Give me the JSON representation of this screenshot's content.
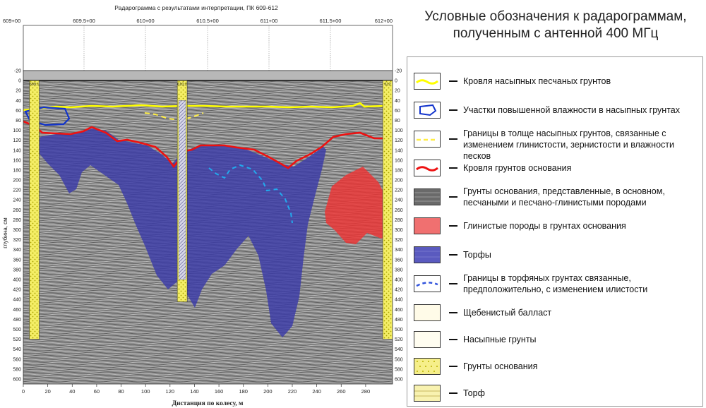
{
  "radargram": {
    "title": "Радарограмма с результатами интерпретации, ПК 609-612",
    "pk_labels": [
      "609+00",
      "609.5+00",
      "610+00",
      "610.5+00",
      "611+00",
      "611.5+00",
      "612+00"
    ],
    "x_axis": {
      "label": "Дистанция по колесу, м",
      "ticks": [
        0,
        20,
        40,
        60,
        80,
        100,
        120,
        140,
        160,
        180,
        200,
        220,
        240,
        260,
        280
      ],
      "range": [
        0,
        302
      ]
    },
    "y_axis": {
      "label": "глубина, см",
      "ticks": [
        -20,
        0,
        20,
        40,
        60,
        80,
        100,
        120,
        140,
        160,
        180,
        200,
        220,
        240,
        260,
        280,
        300,
        320,
        340,
        360,
        380,
        400,
        420,
        440,
        460,
        480,
        500,
        520,
        540,
        560,
        580,
        600
      ],
      "range": [
        -20,
        610
      ]
    },
    "boreholes": [
      {
        "label": "609.1",
        "x": 9,
        "depth": 520
      },
      {
        "label": "610.2",
        "x": 130,
        "depth": 445
      },
      {
        "label": "612",
        "x": 298,
        "depth": 520
      }
    ],
    "colors": {
      "yellow_line": "#ffff00",
      "red_line": "#ee1111",
      "peat": "#3a3aa8",
      "clay": "#ee3333",
      "blue_dashed": "#22aaee",
      "yellow_dashed": "#ffee44",
      "wet_zone": "#1133cc"
    }
  },
  "legend": {
    "title_line1": "Условные обозначения к радарограммам,",
    "title_line2": "полученным с антенной 400 МГц",
    "items": [
      {
        "swatch": "yellow-line",
        "text": "Кровля насыпных песчаных грунтов"
      },
      {
        "swatch": "blue-polygon",
        "text": "Участки повышенной влажности в насыпных грунтах"
      },
      {
        "swatch": "yellow-dashed",
        "text": "Границы в толще насыпных грунтов, связанные с изменением глинистости, зернистости и влажности песков"
      },
      {
        "swatch": "red-line",
        "text": "Кровля грунтов основания"
      },
      {
        "swatch": "gray-fill",
        "text": "Грунты основания, представленные, в основном, песчаными и песчано-глинистыми породами"
      },
      {
        "swatch": "red-fill",
        "text": "Глинистые породы в грунтах основания"
      },
      {
        "swatch": "blue-fill",
        "text": "Торфы"
      },
      {
        "swatch": "blue-dashed",
        "text": "Границы в торфяных грунтах связанные, предположительно, с изменением илистости"
      },
      {
        "swatch": "ballast-fill",
        "text": "Щебенистый балласт"
      },
      {
        "swatch": "fill-soil",
        "text": "Насыпные грунты"
      },
      {
        "swatch": "base-soil",
        "text": "Грунты основания"
      },
      {
        "swatch": "peat-fill",
        "text": "Торф"
      }
    ]
  }
}
